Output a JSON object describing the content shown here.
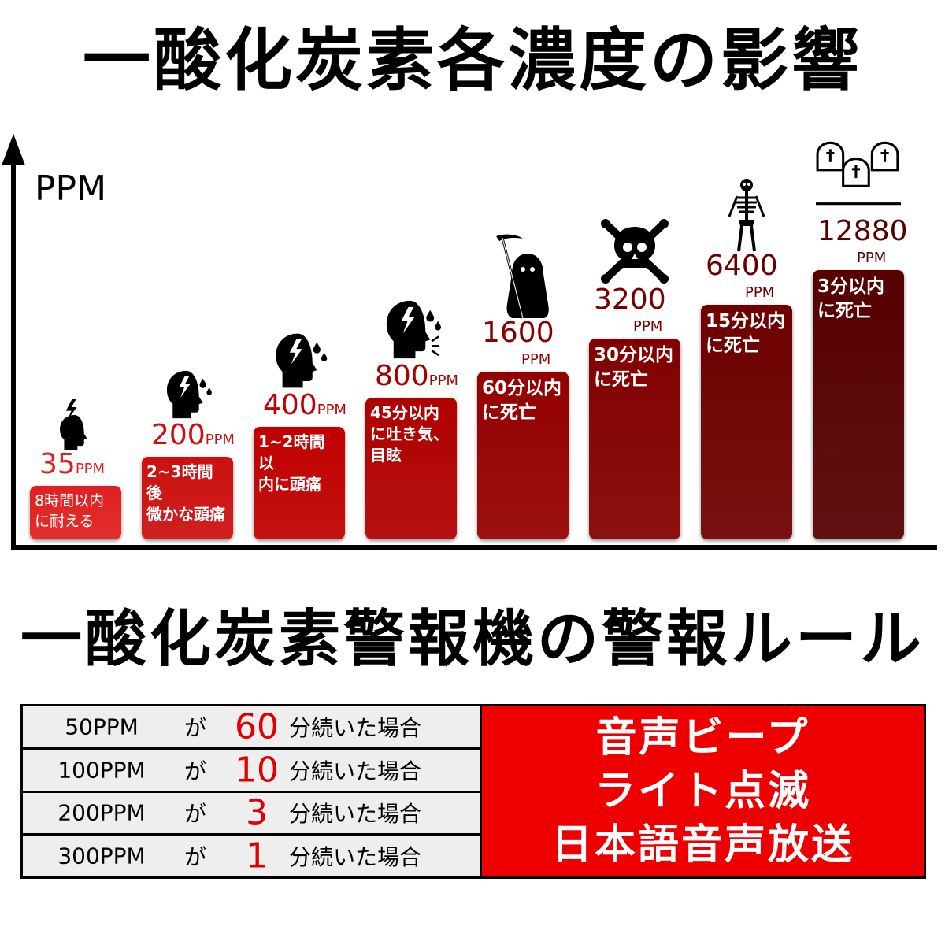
{
  "title": "一酸化炭素各濃度の影響",
  "chart_data": {
    "type": "bar",
    "ylabel": "PPM",
    "categories": [
      "35",
      "200",
      "400",
      "800",
      "1600",
      "3200",
      "6400",
      "12880"
    ],
    "values": [
      35,
      200,
      400,
      800,
      1600,
      3200,
      6400,
      12880
    ],
    "unit": "PPM",
    "value_labels": [
      "35",
      "200",
      "400",
      "800",
      "1600",
      "3200",
      "6400",
      "12880"
    ],
    "effects": [
      "8時間以内\nに耐える",
      "2~3時間後\n微かな頭痛",
      "1~2時間以\n内に頭痛",
      "45分以内\nに吐き気、\n目眩",
      "60分以内\nに死亡",
      "30分以内\nに死亡",
      "15分以内\nに死亡",
      "3分以内\nに死亡"
    ],
    "icons": [
      "headache-icon",
      "headache-drops-icon",
      "headache-drops-icon",
      "headache-dizzy-icon",
      "grim-reaper-icon",
      "skull-crossbones-icon",
      "skeleton-icon",
      "tombstones-icon"
    ],
    "colors": [
      "#e02020",
      "#cc1010",
      "#c00000",
      "#b00000",
      "#940000",
      "#820000",
      "#6e0000",
      "#560000"
    ]
  },
  "rules": {
    "title": "一酸化炭素警報機の警報ルール",
    "ga": "が",
    "continued": "分続いた場合",
    "rows": [
      {
        "ppm": "50PPM",
        "minutes": "60"
      },
      {
        "ppm": "100PPM",
        "minutes": "10"
      },
      {
        "ppm": "200PPM",
        "minutes": "3"
      },
      {
        "ppm": "300PPM",
        "minutes": "1"
      }
    ],
    "actions": [
      "音声ビープ",
      "ライト点滅",
      "日本語音声放送"
    ]
  }
}
